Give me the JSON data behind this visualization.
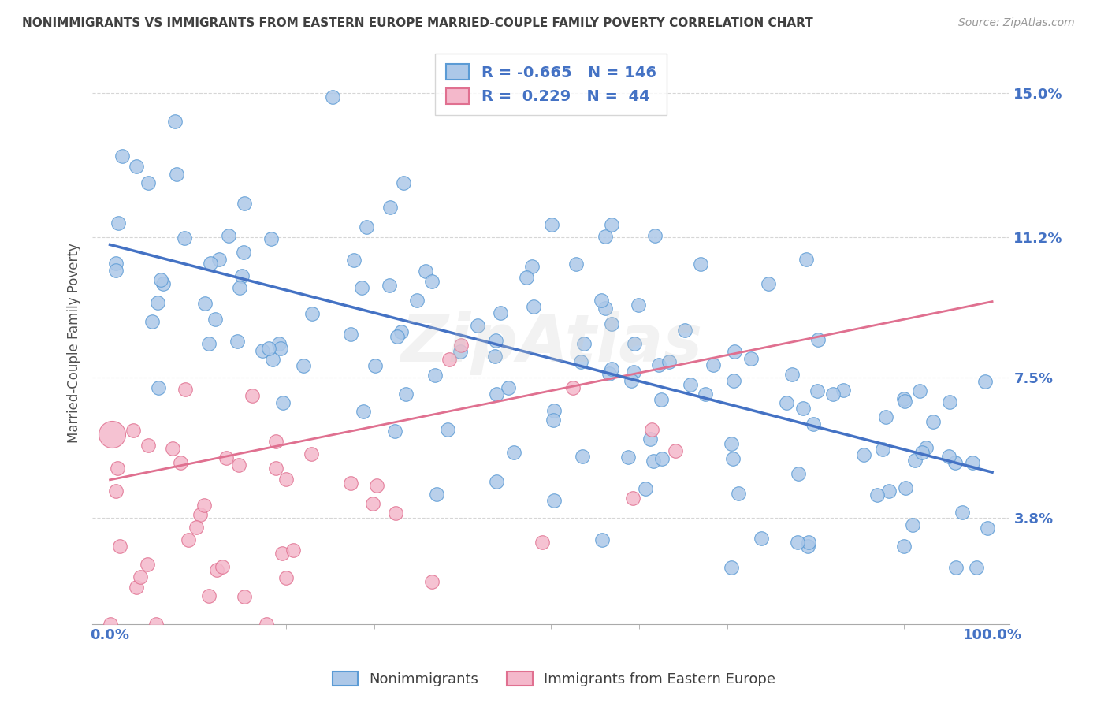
{
  "title": "NONIMMIGRANTS VS IMMIGRANTS FROM EASTERN EUROPE MARRIED-COUPLE FAMILY POVERTY CORRELATION CHART",
  "source": "Source: ZipAtlas.com",
  "ylabel": "Married-Couple Family Poverty",
  "y_tick_labels": [
    "3.8%",
    "7.5%",
    "11.2%",
    "15.0%"
  ],
  "y_tick_vals": [
    0.038,
    0.075,
    0.112,
    0.15
  ],
  "x_min": 0.0,
  "x_max": 1.0,
  "y_min": 0.01,
  "y_max": 0.158,
  "legend_nonimm_R": "-0.665",
  "legend_nonimm_N": "146",
  "legend_imm_R": "0.229",
  "legend_imm_N": "44",
  "nonimm_color": "#adc8e8",
  "nonimm_edge": "#5b9bd5",
  "imm_color": "#f4b8cb",
  "imm_edge": "#e07090",
  "line_nonimm_color": "#4472c4",
  "line_imm_color": "#e07090",
  "line_imm_gray": "#cccccc",
  "background": "#ffffff",
  "grid_color": "#cccccc",
  "title_color": "#404040",
  "axis_label_color": "#4472c4",
  "watermark": "ZipAtlas",
  "nonimm_seed": 1234,
  "imm_seed": 5678,
  "nonimm_intercept": 0.11,
  "nonimm_slope": -0.065,
  "nonimm_noise": 0.02,
  "imm_intercept": 0.038,
  "imm_slope": 0.055,
  "imm_noise": 0.022
}
